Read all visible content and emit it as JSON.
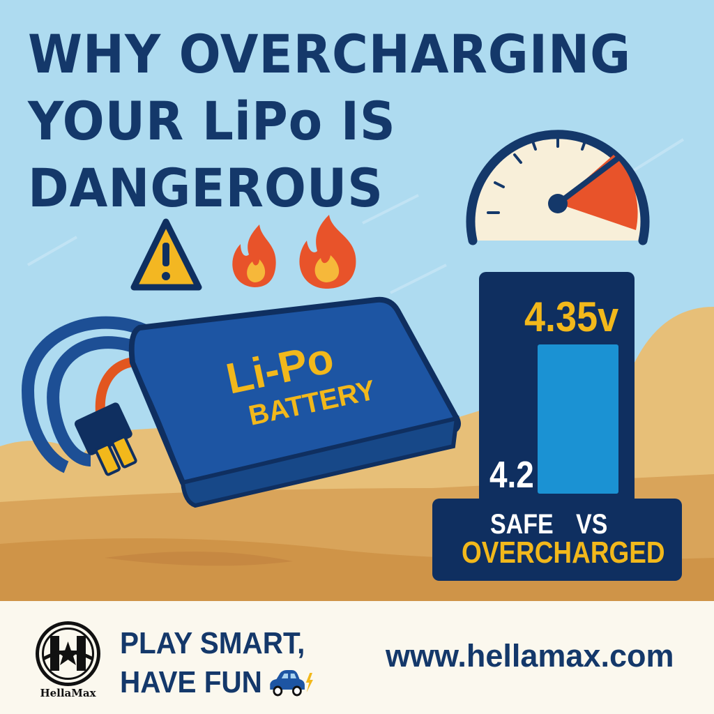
{
  "title": {
    "lines": [
      "WHY OVERCHARGING",
      "YOUR LiPo IS",
      "DANGEROUS"
    ]
  },
  "battery": {
    "label_top": "Li-Po",
    "label_bottom": "BATTERY"
  },
  "icons": [
    "warning-icon",
    "fire-icon",
    "fire-icon",
    "gauge-icon",
    "car-icon",
    "lightning-icon"
  ],
  "comparison": {
    "overcharged_voltage": "4.35v",
    "safe_voltage": "4.2",
    "safe_label": "SAFE",
    "vs_label": "VS",
    "overcharged_label": "OVERCHARGED"
  },
  "footer": {
    "brand": "HellaMax",
    "slogan_line1": "PLAY SMART,",
    "slogan_line2": "HAVE FUN",
    "url": "www.hellamax.com"
  },
  "colors": {
    "navy": "#0f2f60",
    "yellow": "#f2b81b",
    "sky": "#aedbf0",
    "bar_blue": "#1b92d3",
    "red": "#e8532a",
    "footer_bg": "#fbf8ee"
  }
}
